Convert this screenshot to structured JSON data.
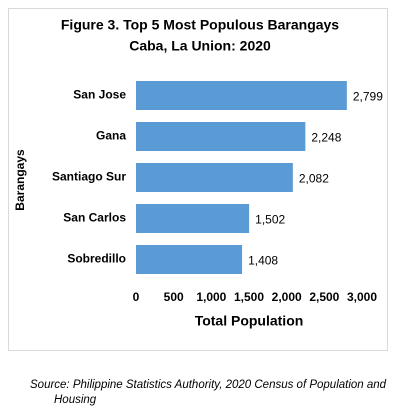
{
  "chart_data": {
    "type": "barh",
    "title": "Figure 3. Top 5 Most Populous Barangays",
    "subtitle": "Caba, La Union: 2020",
    "xlabel": "Total Population",
    "ylabel": "Barangays",
    "categories": [
      "San Jose",
      "Gana",
      "Santiago Sur",
      "San Carlos",
      "Sobredillo"
    ],
    "values": [
      2799,
      2248,
      2082,
      1502,
      1408
    ],
    "value_labels": [
      "2,799",
      "2,248",
      "2,082",
      "1,502",
      "1,408"
    ],
    "color": "#5b9bd5",
    "xlim": [
      0,
      3000
    ],
    "xticks": [
      0,
      500,
      {
        "value": 1000,
        "label": "1,000"
      },
      {
        "value": 1500,
        "label": "1,500"
      },
      {
        "value": 2000,
        "label": "2,000"
      },
      {
        "value": 2500,
        "label": "2,500"
      },
      {
        "value": 3000,
        "label": "3,000"
      }
    ],
    "grid": false,
    "source": "Source: Philippine Statistics Authority, 2020 Census of Population and Housing"
  }
}
